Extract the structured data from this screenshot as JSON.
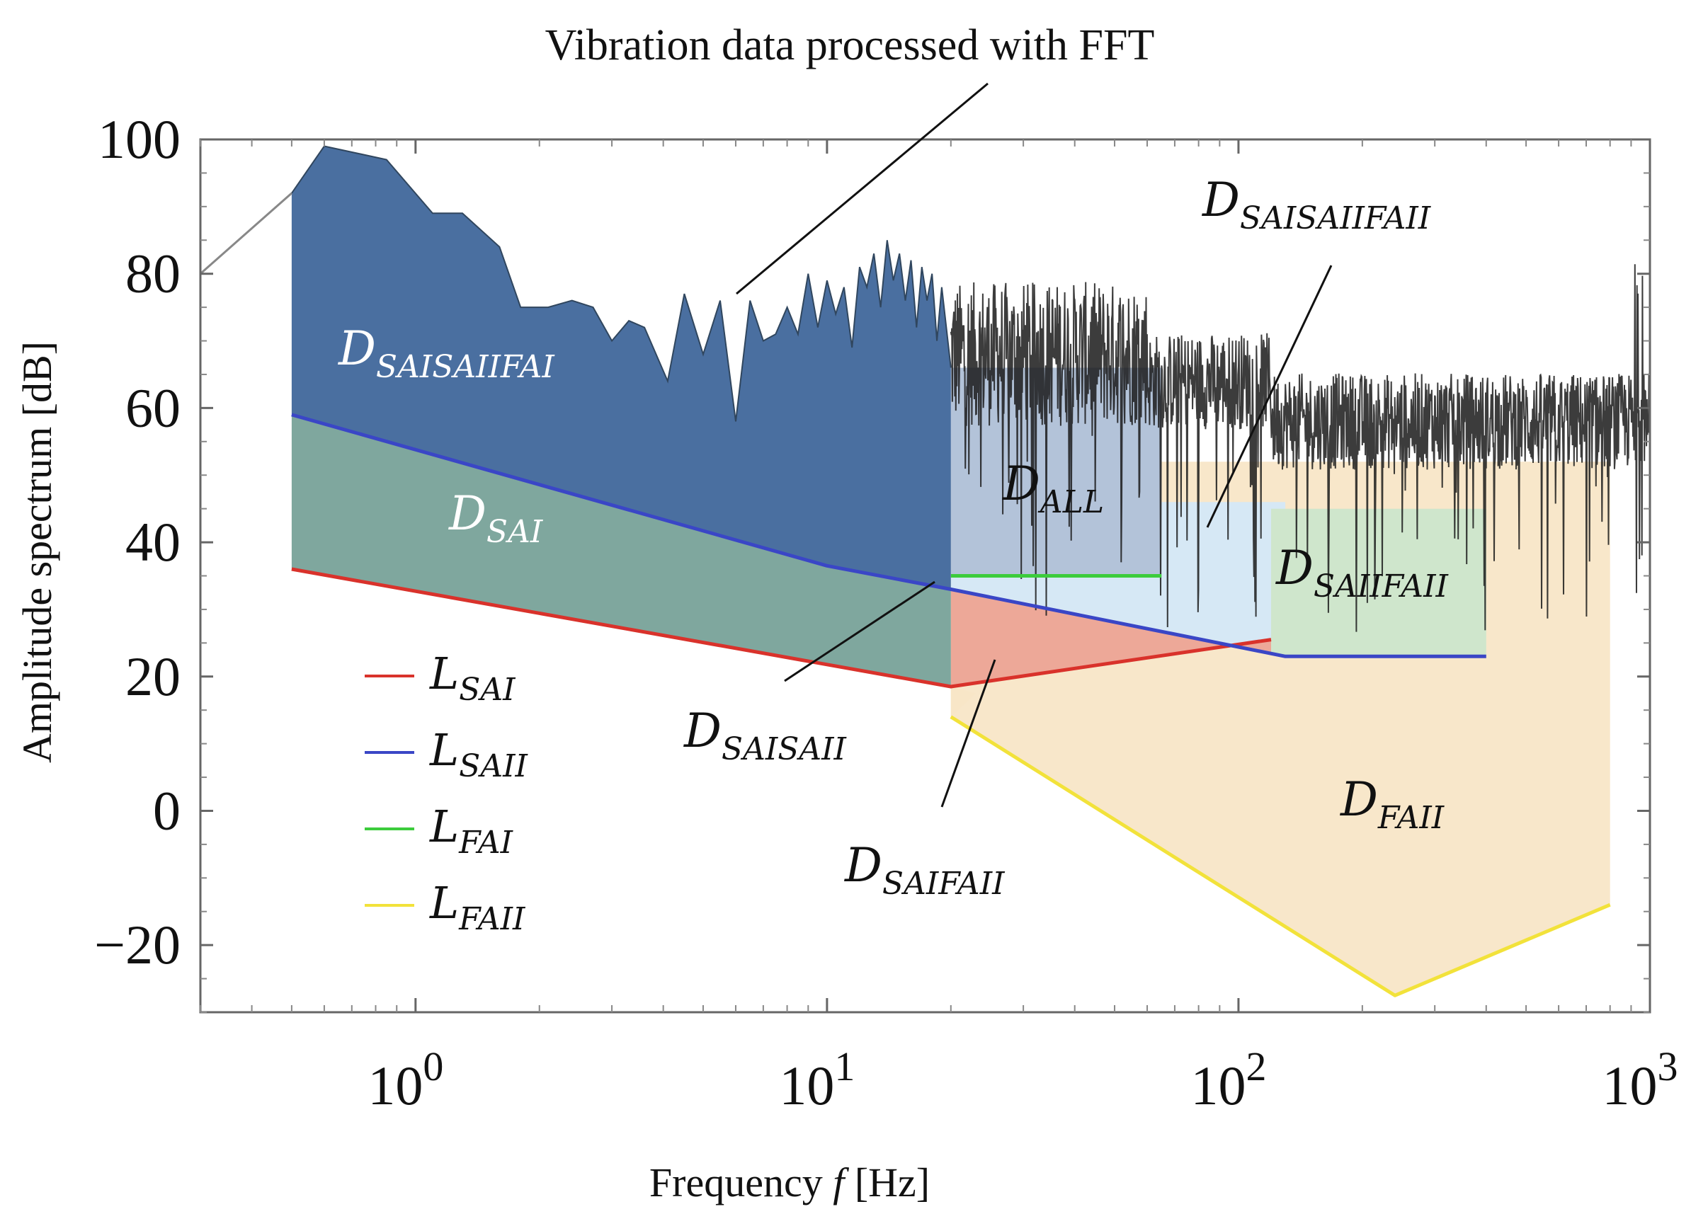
{
  "chart_data": {
    "type": "area",
    "title": "",
    "xlabel": "Frequency f [Hz]",
    "xlabel_parts": {
      "text": "Frequency",
      "var": "f",
      "unit": "[Hz]"
    },
    "ylabel": "Amplitude spectrum [dB]",
    "xscale": "log",
    "xlim": [
      0.3,
      1000
    ],
    "ylim": [
      -30,
      100
    ],
    "x_ticks": [
      {
        "value": 1,
        "base": "10",
        "exp": "0"
      },
      {
        "value": 10,
        "base": "10",
        "exp": "1"
      },
      {
        "value": 100,
        "base": "10",
        "exp": "2"
      },
      {
        "value": 1000,
        "base": "10",
        "exp": "3"
      }
    ],
    "y_ticks": [
      {
        "value": 100,
        "label": "100"
      },
      {
        "value": 80,
        "label": "80"
      },
      {
        "value": 60,
        "label": "60"
      },
      {
        "value": 40,
        "label": "40"
      },
      {
        "value": 20,
        "label": "20"
      },
      {
        "value": 0,
        "label": "0"
      },
      {
        "value": -20,
        "label": "−20"
      }
    ],
    "grid": false,
    "legend_position": "bottom-left",
    "series": [
      {
        "name": "L_SAI",
        "label_main": "L",
        "label_sub": "SAI",
        "color": "#d9322b",
        "x": [
          0.5,
          20,
          120
        ],
        "y": [
          36,
          18.5,
          25.5
        ]
      },
      {
        "name": "L_SAII",
        "label_main": "L",
        "label_sub": "SAII",
        "color": "#3a46c6",
        "x": [
          0.5,
          10,
          20,
          130,
          400
        ],
        "y": [
          59,
          36.5,
          33,
          23,
          23
        ]
      },
      {
        "name": "L_FAI",
        "label_main": "L",
        "label_sub": "FAI",
        "color": "#3ccc3c",
        "x": [
          20,
          65
        ],
        "y": [
          35,
          35
        ]
      },
      {
        "name": "L_FAII",
        "label_main": "L",
        "label_sub": "FAII",
        "color": "#f2e23a",
        "x": [
          20,
          240,
          800
        ],
        "y": [
          14,
          -27.5,
          -14
        ]
      }
    ],
    "fft_anchor": {
      "x": [
        0.5,
        0.6,
        0.85,
        1.1,
        1.3,
        1.6,
        1.8,
        2.1,
        2.4,
        2.7,
        3.0,
        3.3,
        3.6,
        4.1,
        4.5,
        5.0,
        5.5,
        6.0,
        6.5,
        7.0,
        7.5,
        8.0,
        8.5,
        9.0,
        9.5,
        10.0,
        10.5,
        11.0,
        11.5,
        12.0,
        12.5,
        13.0,
        13.5,
        14.0,
        14.5,
        15.0,
        15.5,
        16.0,
        16.5,
        17.0,
        17.5,
        18.0,
        18.5,
        19.0,
        20.0
      ],
      "y": [
        92,
        99,
        97,
        89,
        89,
        84,
        75,
        75,
        76,
        75,
        70,
        73,
        72,
        64,
        77,
        68,
        76,
        58,
        76,
        70,
        71,
        75,
        71,
        80,
        72,
        79,
        74,
        78,
        69,
        81,
        78,
        83,
        75,
        85,
        79,
        83,
        76,
        82,
        72,
        81,
        76,
        80,
        70,
        78,
        66
      ]
    },
    "regions": [
      {
        "name": "D_SAISAIIFAI",
        "main": "D",
        "sub": "SAISAIIFAI",
        "fill": "#4a6fa0",
        "text_color": "#ffffff"
      },
      {
        "name": "D_SAI",
        "main": "D",
        "sub": "SAI",
        "fill": "#7fa79e",
        "text_color": "#ffffff"
      },
      {
        "name": "D_ALL",
        "main": "D",
        "sub": "ALL",
        "fill": "#b3c3d9",
        "text_color": "#111111"
      },
      {
        "name": "D_SAISAIIFAII",
        "main": "D",
        "sub": "SAISAIIFAII",
        "fill": "#d6e8f5",
        "text_color": "#111111"
      },
      {
        "name": "D_SAIIFAII",
        "main": "D",
        "sub": "SAIIFAII",
        "fill": "#cfe6cc",
        "text_color": "#111111"
      },
      {
        "name": "D_FAII",
        "main": "D",
        "sub": "FAII",
        "fill": "#f8e6c7",
        "text_color": "#111111"
      },
      {
        "name": "D_SAIFAII",
        "main": "D",
        "sub": "SAIFAII",
        "fill": "#eda898",
        "text_color": "#111111"
      },
      {
        "name": "D_SAISAII",
        "main": "D",
        "sub": "SAISAII",
        "fill": "#4a6fa0",
        "text_color": "#111111"
      }
    ],
    "annotations": [
      {
        "text": "Vibration data processed with FFT"
      }
    ]
  }
}
